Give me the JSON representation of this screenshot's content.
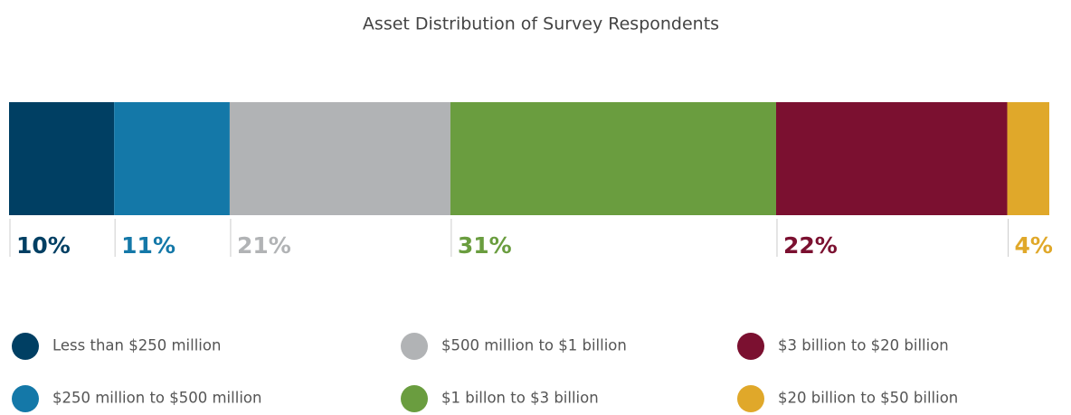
{
  "chart_data": {
    "type": "stacked_bar",
    "title": "Asset Distribution of Survey Respondents",
    "series": [
      {
        "name": "Less than $250 million",
        "color": "#003f63",
        "values": [
          10
        ],
        "value_labels": [
          "10%"
        ]
      },
      {
        "name": "$250 million to $500 million",
        "color": "#1478a8",
        "values": [
          11
        ],
        "value_labels": [
          "11%"
        ]
      },
      {
        "name": "$500 million to $1 billion",
        "color": "#b1b3b5",
        "values": [
          21
        ],
        "value_labels": [
          "21%"
        ]
      },
      {
        "name": "$1 billon to $3 billion",
        "color": "#6a9d3f",
        "values": [
          31
        ],
        "value_labels": [
          "31%"
        ]
      },
      {
        "name": "$3 billion to $20 billion",
        "color": "#7b1030",
        "values": [
          22
        ],
        "value_labels": [
          "22%"
        ]
      },
      {
        "name": "$20 billion to $50 billion",
        "color": "#e0a82a",
        "values": [
          4
        ],
        "value_labels": [
          "4%"
        ]
      }
    ]
  }
}
